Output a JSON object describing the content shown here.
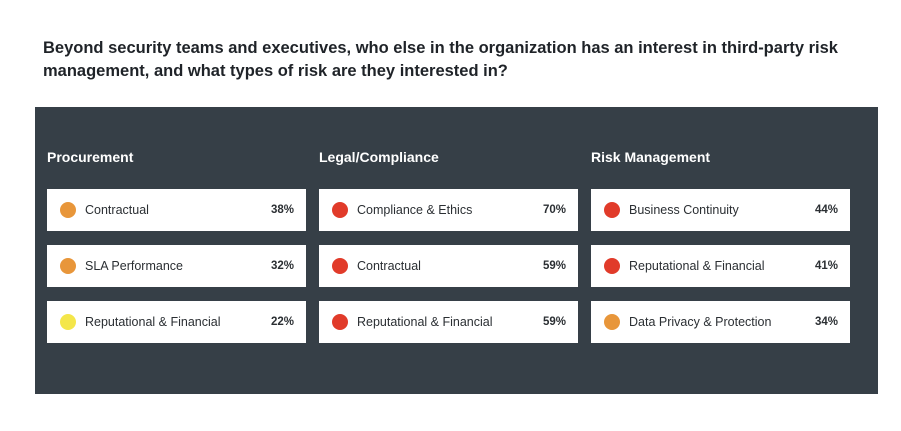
{
  "question": "Beyond security teams and executives, who else in the organization has an interest in third-party risk management, and what types of risk are they interested in?",
  "colors": {
    "panel_bg": "#363f47",
    "yellow": "#f4e64a",
    "orange": "#e8963a",
    "red": "#e13b2a"
  },
  "chart_data": {
    "type": "table",
    "title": "Beyond security teams and executives, who else in the organization has an interest in third-party risk management, and what types of risk are they interested in?",
    "groups": [
      {
        "name": "Procurement",
        "items": [
          {
            "label": "Contractual",
            "value": "38%",
            "color": "#e8963a"
          },
          {
            "label": "SLA Performance",
            "value": "32%",
            "color": "#e8963a"
          },
          {
            "label": "Reputational & Financial",
            "value": "22%",
            "color": "#f4e64a"
          }
        ]
      },
      {
        "name": "Legal/Compliance",
        "items": [
          {
            "label": "Compliance & Ethics",
            "value": "70%",
            "color": "#e13b2a"
          },
          {
            "label": "Contractual",
            "value": "59%",
            "color": "#e13b2a"
          },
          {
            "label": "Reputational & Financial",
            "value": "59%",
            "color": "#e13b2a"
          }
        ]
      },
      {
        "name": "Risk Management",
        "items": [
          {
            "label": "Business Continuity",
            "value": "44%",
            "color": "#e13b2a"
          },
          {
            "label": "Reputational & Financial",
            "value": "41%",
            "color": "#e13b2a"
          },
          {
            "label": "Data Privacy & Protection",
            "value": "34%",
            "color": "#e8963a"
          }
        ]
      }
    ]
  }
}
